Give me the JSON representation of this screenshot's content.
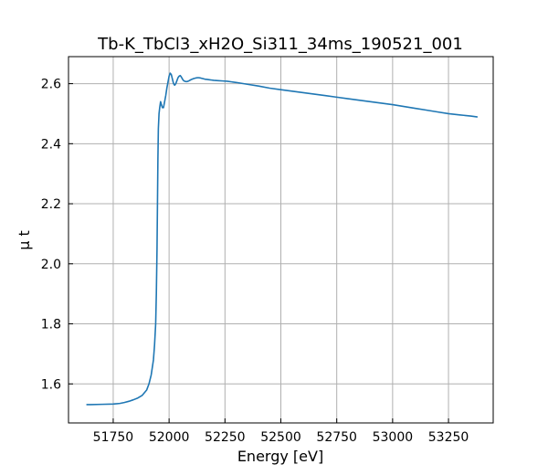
{
  "chart_data": {
    "type": "line",
    "title": "Tb-K_TbCl3_xH2O_Si311_34ms_190521_001",
    "xlabel": "Energy [eV]",
    "ylabel": "μ t",
    "xlim": [
      51550,
      53450
    ],
    "ylim": [
      1.47,
      2.69
    ],
    "xticks": [
      51750,
      52000,
      52250,
      52500,
      52750,
      53000,
      53250
    ],
    "yticks": [
      1.6,
      1.8,
      2.0,
      2.2,
      2.4,
      2.6
    ],
    "ytick_decimals": 1,
    "grid": true,
    "series": [
      {
        "color": "#1f77b4",
        "x": [
          51630,
          51650,
          51700,
          51750,
          51780,
          51800,
          51820,
          51840,
          51860,
          51880,
          51900,
          51910,
          51920,
          51930,
          51935,
          51940,
          51943,
          51946,
          51948,
          51950,
          51952,
          51955,
          51958,
          51962,
          51966,
          51970,
          51975,
          51980,
          51985,
          51990,
          51995,
          52000,
          52005,
          52010,
          52015,
          52020,
          52025,
          52030,
          52035,
          52040,
          52045,
          52050,
          52055,
          52060,
          52065,
          52070,
          52075,
          52080,
          52085,
          52090,
          52095,
          52100,
          52110,
          52120,
          52130,
          52140,
          52150,
          52160,
          52170,
          52180,
          52190,
          52200,
          52220,
          52240,
          52260,
          52280,
          52300,
          52350,
          52400,
          52450,
          52500,
          52550,
          52600,
          52650,
          52700,
          52750,
          52800,
          52850,
          52900,
          52950,
          53000,
          53050,
          53100,
          53150,
          53200,
          53250,
          53300,
          53350,
          53380
        ],
        "y": [
          1.531,
          1.531,
          1.532,
          1.533,
          1.535,
          1.538,
          1.542,
          1.547,
          1.553,
          1.562,
          1.58,
          1.6,
          1.63,
          1.68,
          1.73,
          1.8,
          1.9,
          2.05,
          2.2,
          2.35,
          2.45,
          2.5,
          2.52,
          2.54,
          2.53,
          2.52,
          2.52,
          2.54,
          2.56,
          2.585,
          2.605,
          2.625,
          2.635,
          2.63,
          2.615,
          2.6,
          2.595,
          2.6,
          2.61,
          2.62,
          2.625,
          2.627,
          2.622,
          2.615,
          2.61,
          2.608,
          2.607,
          2.607,
          2.608,
          2.61,
          2.612,
          2.614,
          2.617,
          2.619,
          2.62,
          2.619,
          2.617,
          2.615,
          2.614,
          2.613,
          2.612,
          2.611,
          2.61,
          2.609,
          2.608,
          2.606,
          2.604,
          2.598,
          2.592,
          2.585,
          2.58,
          2.575,
          2.57,
          2.565,
          2.56,
          2.555,
          2.55,
          2.545,
          2.54,
          2.535,
          2.53,
          2.524,
          2.518,
          2.512,
          2.506,
          2.5,
          2.496,
          2.492,
          2.489
        ]
      }
    ]
  }
}
